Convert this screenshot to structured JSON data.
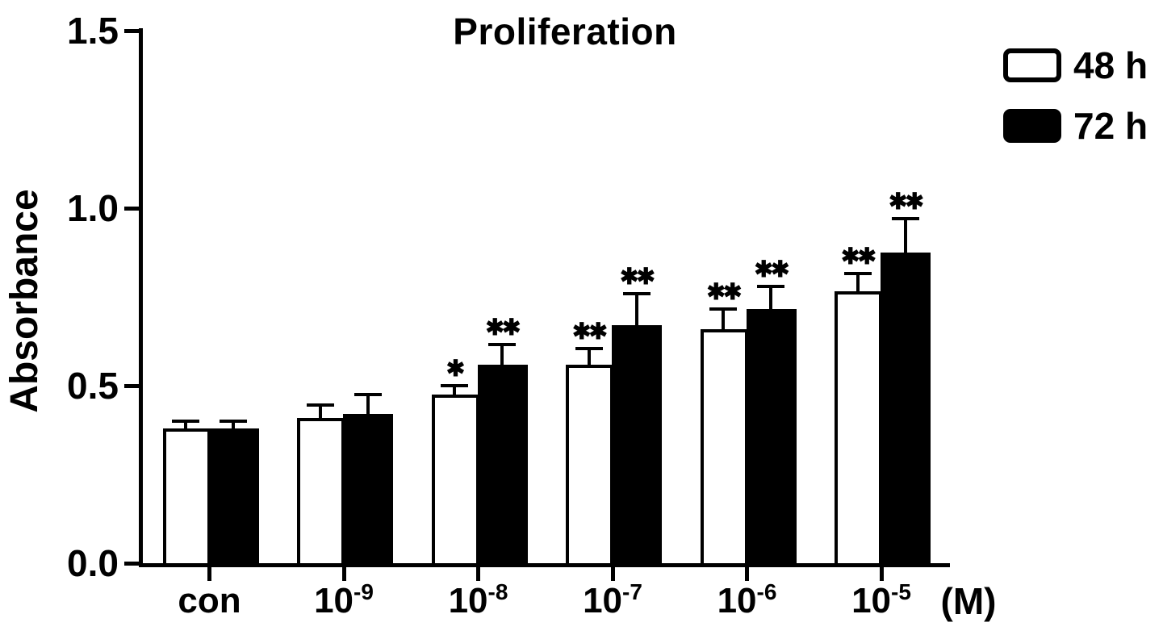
{
  "colors": {
    "foreground": "#000000",
    "background": "#ffffff",
    "series_48h_fill": "#ffffff",
    "series_72h_fill": "#000000"
  },
  "chart_data": {
    "type": "bar",
    "title": "Proliferation",
    "ylabel": "Absorbance",
    "xlabel": "",
    "x_unit_label": "(M)",
    "ylim": [
      0.0,
      1.5
    ],
    "ytick_values": [
      0.0,
      0.5,
      1.0,
      1.5
    ],
    "ytick_labels": [
      "0.0",
      "0.5",
      "1.0",
      "1.5"
    ],
    "grid": false,
    "legend_position": "top-right",
    "error_bars": "upper, SD",
    "categories": [
      "con",
      "10⁻⁹",
      "10⁻⁸",
      "10⁻⁷",
      "10⁻⁶",
      "10⁻⁵"
    ],
    "category_parts": [
      {
        "base": "con",
        "sup": ""
      },
      {
        "base": "10",
        "sup": "-9"
      },
      {
        "base": "10",
        "sup": "-8"
      },
      {
        "base": "10",
        "sup": "-7"
      },
      {
        "base": "10",
        "sup": "-6"
      },
      {
        "base": "10",
        "sup": "-5"
      }
    ],
    "series": [
      {
        "name": "48 h",
        "fill": "#ffffff",
        "values": [
          0.38,
          0.41,
          0.475,
          0.56,
          0.66,
          0.765
        ],
        "errors": [
          0.02,
          0.035,
          0.025,
          0.045,
          0.055,
          0.05
        ],
        "significance": [
          "",
          "",
          "*",
          "**",
          "**",
          "**"
        ]
      },
      {
        "name": "72 h",
        "fill": "#000000",
        "values": [
          0.38,
          0.42,
          0.56,
          0.67,
          0.715,
          0.875
        ],
        "errors": [
          0.02,
          0.055,
          0.055,
          0.09,
          0.065,
          0.095
        ],
        "significance": [
          "",
          "",
          "**",
          "**",
          "**",
          "**"
        ]
      }
    ]
  }
}
